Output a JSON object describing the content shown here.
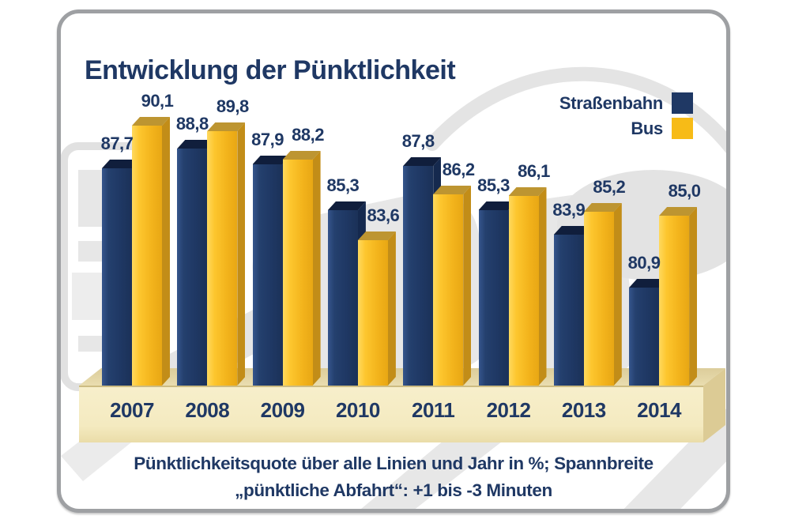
{
  "panel": {
    "title": "Entwicklung der Pünktlichkeit"
  },
  "legend": {
    "items": [
      {
        "label": "Straßenbahn",
        "color": "#1F3864"
      },
      {
        "label": "Bus",
        "color": "#F7BB17"
      }
    ]
  },
  "caption": {
    "line1": "Pünktlichkeitsquote über alle Linien und Jahr in %; Spannbreite",
    "line2": "„pünktliche Abfahrt“: +1 bis -3 Minuten"
  },
  "chart_data": {
    "type": "bar",
    "style": "3d-clustered-column",
    "categories": [
      "2007",
      "2008",
      "2009",
      "2010",
      "2011",
      "2012",
      "2013",
      "2014"
    ],
    "series": [
      {
        "name": "Straßenbahn",
        "color": "#1F3864",
        "values": [
          87.7,
          88.8,
          87.9,
          85.3,
          87.8,
          85.3,
          83.9,
          80.9
        ],
        "display_values": [
          "87,7",
          "88,8",
          "87,9",
          "85,3",
          "87,8",
          "85,3",
          "83,9",
          "80,9"
        ]
      },
      {
        "name": "Bus",
        "color": "#F3B41C",
        "values": [
          90.1,
          89.8,
          88.2,
          83.6,
          86.2,
          86.1,
          85.2,
          85.0
        ],
        "display_values": [
          "90,1",
          "89,8",
          "88,2",
          "83,6",
          "86,2",
          "86,1",
          "85,2",
          "85,0"
        ]
      }
    ],
    "title": "Entwicklung der Pünktlichkeit",
    "xlabel": "",
    "ylabel": "",
    "ylim": [
      75.3,
      92
    ],
    "grid": false,
    "axes_hidden": true,
    "value_labels": true,
    "legend_position": "top-right"
  }
}
